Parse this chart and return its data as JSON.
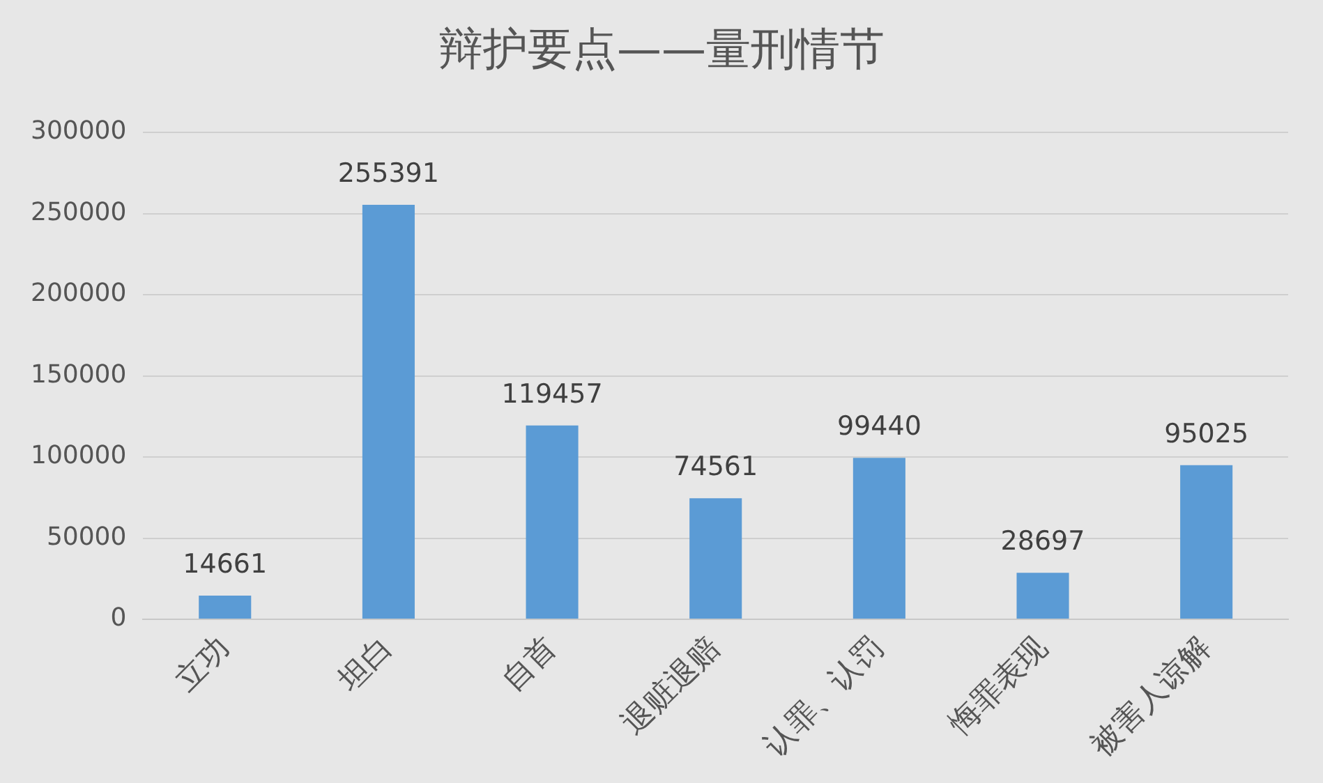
{
  "chart_data": {
    "type": "bar",
    "title": "辩护要点——量刑情节",
    "categories": [
      "立功",
      "坦白",
      "自首",
      "退赃退赔",
      "认罪、认罚",
      "悔罪表现",
      "被害人谅解"
    ],
    "values": [
      14661,
      255391,
      119457,
      74561,
      99440,
      28697,
      95025
    ],
    "color": "#5b9bd5",
    "ylim": [
      0,
      300000
    ],
    "yticks": [
      0,
      50000,
      100000,
      150000,
      200000,
      250000,
      300000
    ],
    "grid": "y",
    "legend": false,
    "data_labels": true
  }
}
